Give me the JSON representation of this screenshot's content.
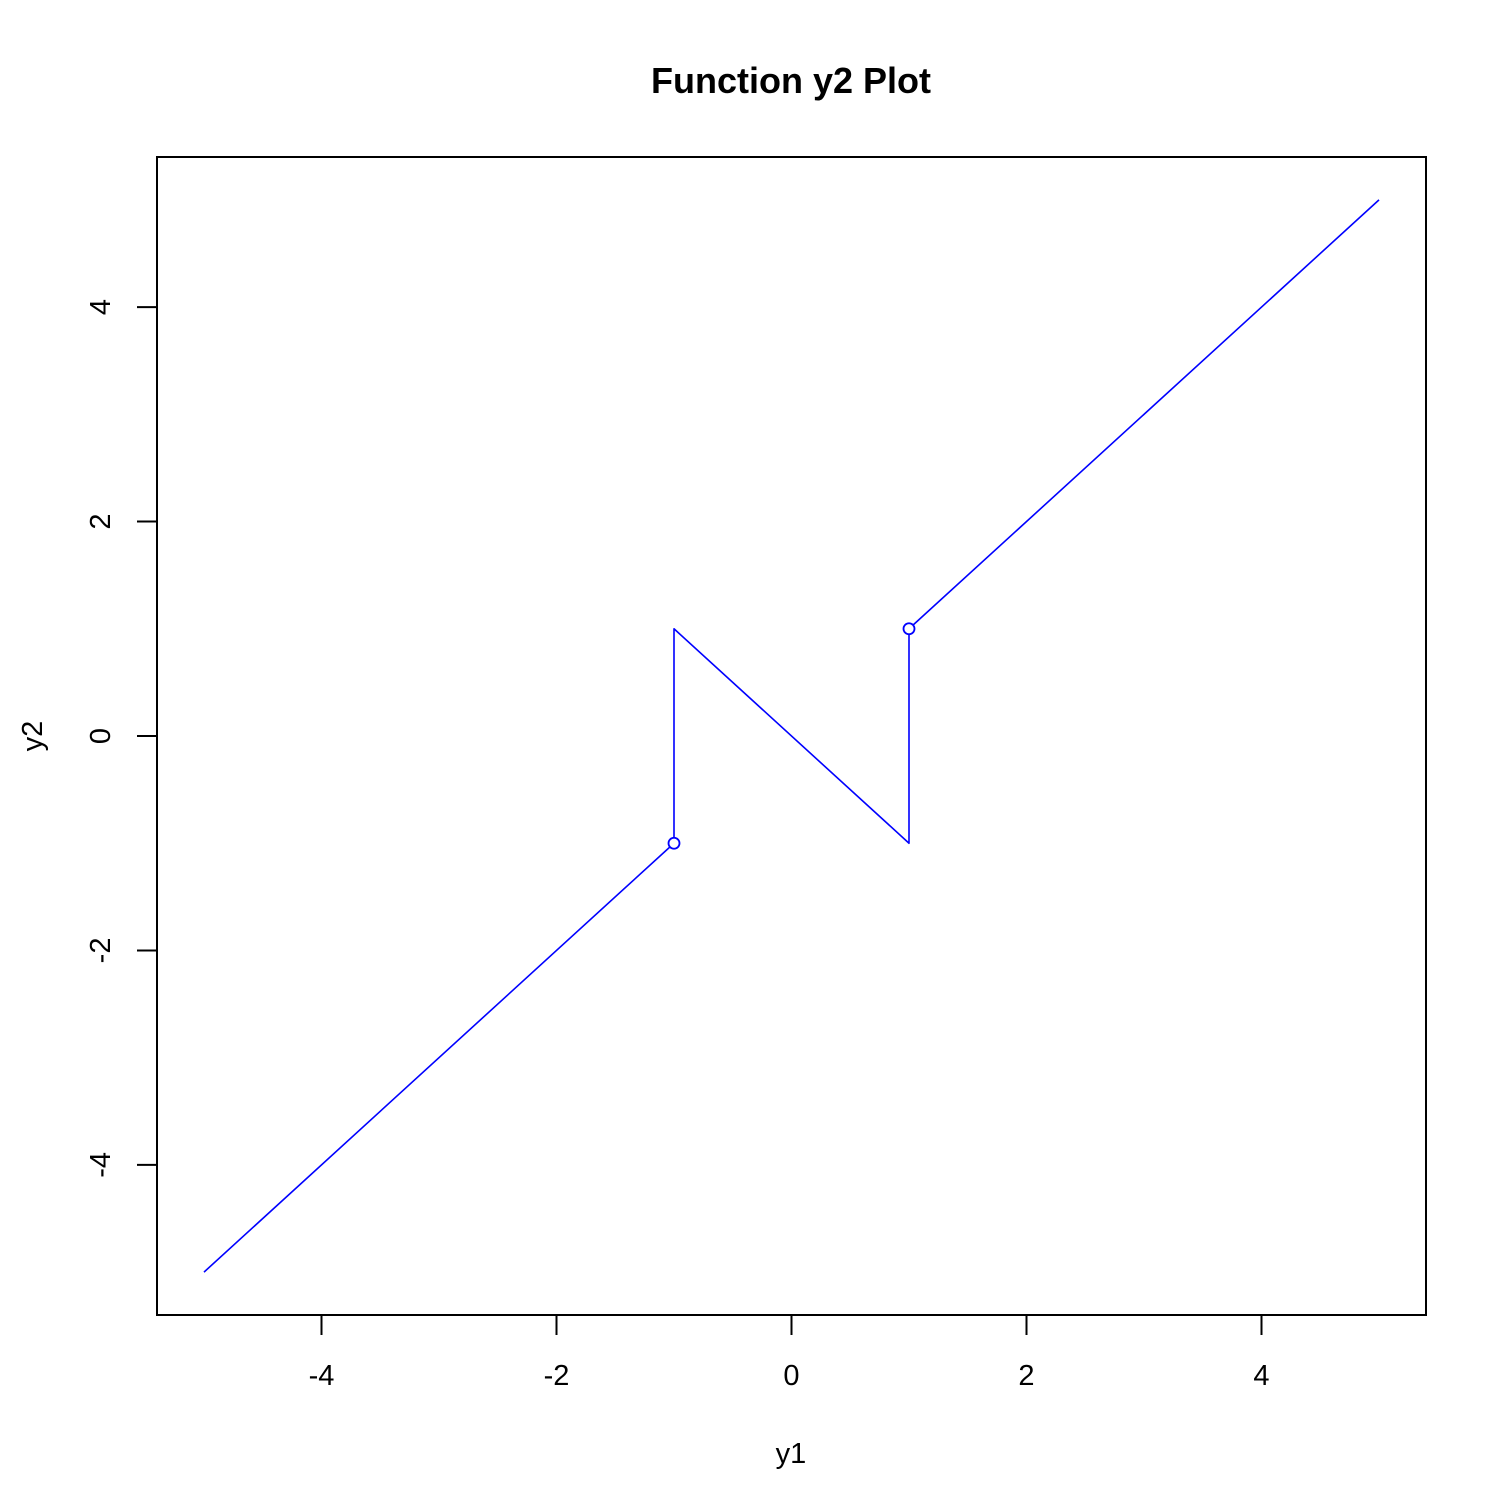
{
  "chart_data": {
    "type": "line",
    "title": "Function y2 Plot",
    "xlabel": "y1",
    "ylabel": "y2",
    "xlim": [
      -5.4,
      5.4
    ],
    "ylim": [
      -5.4,
      5.4
    ],
    "x_ticks": [
      -4,
      -2,
      0,
      2,
      4
    ],
    "y_ticks": [
      -4,
      -2,
      0,
      2,
      4
    ],
    "x_tick_labels": [
      "-4",
      "-2",
      "0",
      "2",
      "4"
    ],
    "y_tick_labels": [
      "-4",
      "-2",
      "0",
      "2",
      "4"
    ],
    "grid": false,
    "line_color": "#0000ff",
    "series": [
      {
        "x": [
          -5,
          -1,
          -1,
          1,
          1,
          5
        ],
        "y": [
          -5,
          -1,
          1,
          -1,
          1,
          5
        ]
      }
    ],
    "open_points": [
      {
        "x": -1,
        "y": -1
      },
      {
        "x": 1,
        "y": 1
      }
    ]
  }
}
